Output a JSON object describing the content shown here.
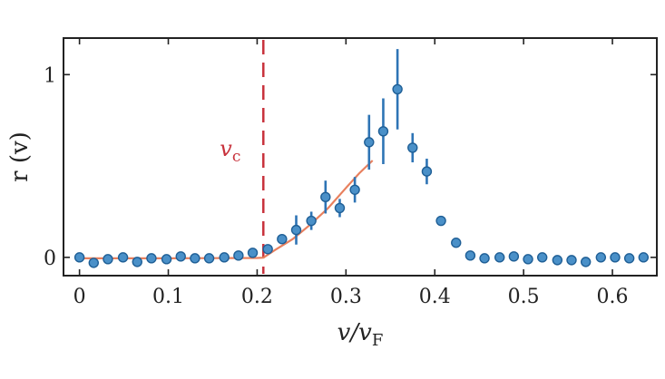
{
  "chart_data": {
    "type": "scatter",
    "title": "",
    "xlabel": "v/v",
    "xlabel_sub": "F",
    "ylabel": "r (v)",
    "xlim": [
      -0.018,
      0.65
    ],
    "ylim": [
      -0.1,
      1.2
    ],
    "xticks": [
      0,
      0.1,
      0.2,
      0.3,
      0.4,
      0.5,
      0.6
    ],
    "xtick_labels": [
      "0",
      "0.1",
      "0.2",
      "0.3",
      "0.4",
      "0.5",
      "0.6"
    ],
    "yticks": [
      0,
      1
    ],
    "ytick_labels": [
      "0",
      "1"
    ],
    "grid": false,
    "legend": "none",
    "colors": {
      "points": "#4a90c8",
      "point_edge": "#1f5f96",
      "errorbar": "#2e74b5",
      "fit": "#e8805e",
      "threshold": "#c8323c",
      "axes": "#222222"
    },
    "threshold_line": {
      "x": 0.207,
      "label": "v",
      "label_sub": "c"
    },
    "fit_curve": {
      "x": [
        0.0,
        0.05,
        0.1,
        0.15,
        0.2,
        0.207,
        0.22,
        0.24,
        0.26,
        0.28,
        0.3,
        0.315,
        0.33
      ],
      "y": [
        -0.005,
        -0.005,
        -0.005,
        -0.004,
        -0.003,
        -0.002,
        0.04,
        0.1,
        0.18,
        0.27,
        0.38,
        0.46,
        0.53
      ]
    },
    "series": [
      {
        "x": [
          0.0,
          0.016,
          0.032,
          0.049,
          0.065,
          0.081,
          0.098,
          0.114,
          0.13,
          0.146,
          0.163,
          0.179,
          0.195,
          0.212,
          0.228,
          0.244,
          0.261,
          0.277,
          0.293,
          0.31,
          0.326,
          0.342,
          0.358,
          0.375,
          0.391,
          0.407,
          0.424,
          0.44,
          0.456,
          0.473,
          0.489,
          0.505,
          0.521,
          0.538,
          0.554,
          0.57,
          0.587,
          0.603,
          0.619,
          0.635
        ],
        "y": [
          0.0,
          -0.03,
          -0.01,
          0.0,
          -0.025,
          -0.005,
          -0.01,
          0.005,
          -0.005,
          -0.005,
          0.0,
          0.01,
          0.025,
          0.045,
          0.1,
          0.15,
          0.2,
          0.33,
          0.27,
          0.37,
          0.63,
          0.69,
          0.92,
          0.6,
          0.47,
          0.2,
          0.08,
          0.01,
          -0.005,
          0.0,
          0.005,
          -0.01,
          0.0,
          -0.015,
          -0.015,
          -0.025,
          0.0,
          0.0,
          -0.005,
          0.0
        ],
        "err": [
          0,
          0,
          0,
          0,
          0,
          0,
          0,
          0,
          0,
          0,
          0,
          0,
          0,
          0,
          0,
          0.08,
          0.05,
          0.09,
          0.05,
          0.07,
          0.15,
          0.18,
          0.22,
          0.08,
          0.07,
          0,
          0,
          0,
          0,
          0,
          0,
          0,
          0,
          0,
          0,
          0,
          0,
          0,
          0,
          0
        ]
      }
    ]
  }
}
